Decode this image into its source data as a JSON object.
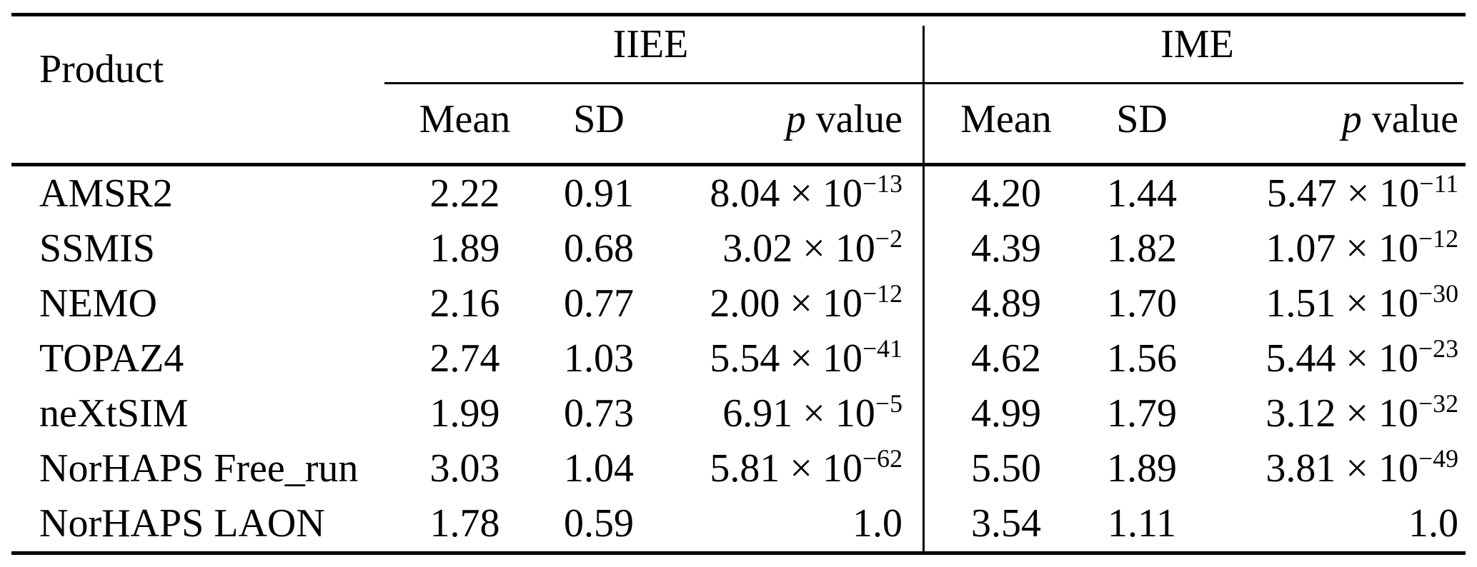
{
  "table": {
    "col_product": "Product",
    "groups": {
      "iiee": "IIEE",
      "ime": "IME"
    },
    "subheaders": {
      "mean": "Mean",
      "sd": "SD",
      "p_italic": "p",
      "p_rest": " value"
    },
    "times_ten_prefix": " × 10",
    "rows": [
      {
        "product": "AMSR2",
        "iiee": {
          "mean": "2.22",
          "sd": "0.91",
          "p_mantissa": "8.04",
          "p_exp": "−13"
        },
        "ime": {
          "mean": "4.20",
          "sd": "1.44",
          "p_mantissa": "5.47",
          "p_exp": "−11"
        }
      },
      {
        "product": "SSMIS",
        "iiee": {
          "mean": "1.89",
          "sd": "0.68",
          "p_mantissa": "3.02",
          "p_exp": "−2"
        },
        "ime": {
          "mean": "4.39",
          "sd": "1.82",
          "p_mantissa": "1.07",
          "p_exp": "−12"
        }
      },
      {
        "product": "NEMO",
        "iiee": {
          "mean": "2.16",
          "sd": "0.77",
          "p_mantissa": "2.00",
          "p_exp": "−12"
        },
        "ime": {
          "mean": "4.89",
          "sd": "1.70",
          "p_mantissa": "1.51",
          "p_exp": "−30"
        }
      },
      {
        "product": "TOPAZ4",
        "iiee": {
          "mean": "2.74",
          "sd": "1.03",
          "p_mantissa": "5.54",
          "p_exp": "−41"
        },
        "ime": {
          "mean": "4.62",
          "sd": "1.56",
          "p_mantissa": "5.44",
          "p_exp": "−23"
        }
      },
      {
        "product": "neXtSIM",
        "iiee": {
          "mean": "1.99",
          "sd": "0.73",
          "p_mantissa": "6.91",
          "p_exp": "−5"
        },
        "ime": {
          "mean": "4.99",
          "sd": "1.79",
          "p_mantissa": "3.12",
          "p_exp": "−32"
        }
      },
      {
        "product": "NorHAPS Free_run",
        "iiee": {
          "mean": "3.03",
          "sd": "1.04",
          "p_mantissa": "5.81",
          "p_exp": "−62"
        },
        "ime": {
          "mean": "5.50",
          "sd": "1.89",
          "p_mantissa": "3.81",
          "p_exp": "−49"
        }
      },
      {
        "product": "NorHAPS LAON",
        "iiee": {
          "mean": "1.78",
          "sd": "0.59",
          "p_plain": "1.0"
        },
        "ime": {
          "mean": "3.54",
          "sd": "1.11",
          "p_plain": "1.0"
        }
      }
    ]
  }
}
